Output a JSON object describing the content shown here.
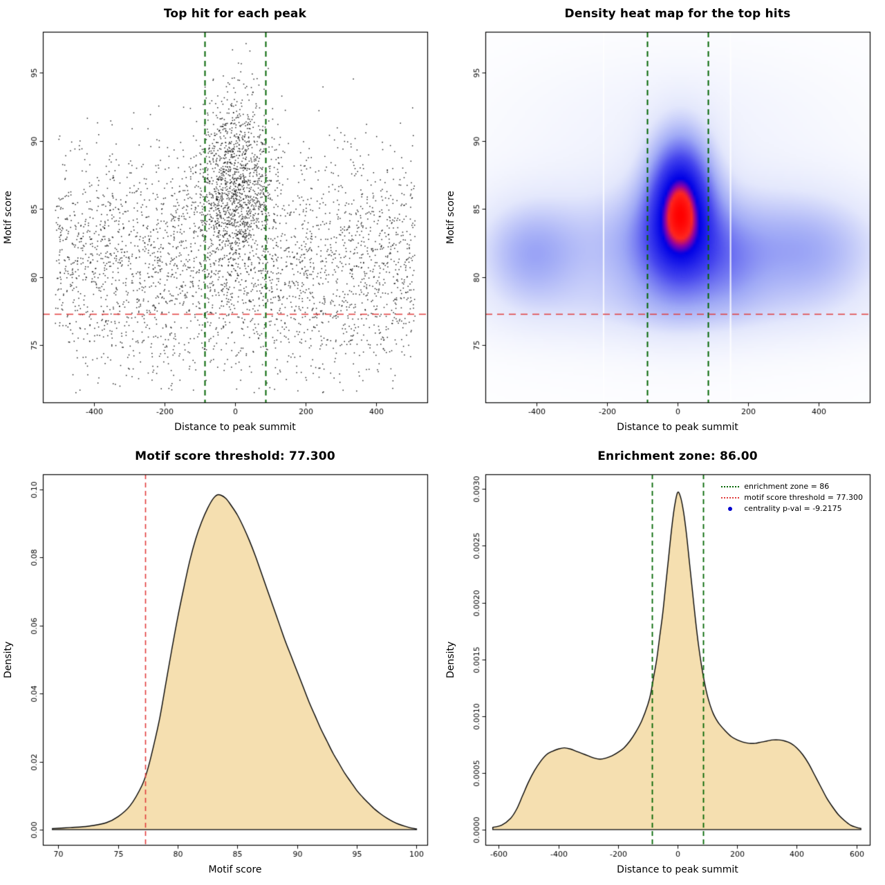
{
  "page": {
    "background": "#ffffff"
  },
  "chart_data": [
    {
      "type": "scatter",
      "title": "Top hit for each peak",
      "xlabel": "Distance to peak summit",
      "ylabel": "Motif score",
      "xlim": [
        -545,
        545
      ],
      "ylim": [
        70.8,
        98.0
      ],
      "xtick_vals": [
        -400,
        -200,
        0,
        200,
        400
      ],
      "xtick_labels": [
        "-400",
        "-200",
        "0",
        "200",
        "400"
      ],
      "ytick_vals": [
        75,
        80,
        85,
        90,
        95
      ],
      "ytick_labels": [
        "75",
        "80",
        "85",
        "90",
        "95"
      ],
      "n_points": 4200,
      "seed": 42,
      "point_color": "rgba(0,0,0,0.88)",
      "mixture": [
        {
          "w": 0.3,
          "kind": "nn",
          "mx": 0,
          "sx": 55,
          "my": 86.8,
          "sy": 3.4
        },
        {
          "w": 0.44,
          "kind": "un",
          "xa": -510,
          "xb": 510,
          "my": 83.0,
          "sy": 3.4
        },
        {
          "w": 0.14,
          "kind": "un",
          "xa": -510,
          "xb": 510,
          "my": 79.3,
          "sy": 2.0
        },
        {
          "w": 0.09,
          "kind": "un",
          "xa": -500,
          "xb": 500,
          "my": 76.3,
          "sy": 1.5
        },
        {
          "w": 0.03,
          "kind": "uu",
          "xa": -450,
          "xb": 450,
          "ya": 71.5,
          "yb": 75.5
        }
      ],
      "vlines": [
        {
          "x": -86,
          "color": "#006400",
          "dash": [
            8,
            6
          ],
          "width": 2
        },
        {
          "x": 86,
          "color": "#006400",
          "dash": [
            8,
            6
          ],
          "width": 2
        }
      ],
      "hlines": [
        {
          "y": 77.3,
          "color": "#e03a3a",
          "dash": [
            10,
            7
          ],
          "width": 1.5
        }
      ],
      "enrichment_zone": 86,
      "motif_score_threshold": 77.3
    },
    {
      "type": "heatmap",
      "title": "Density heat map for the top hits",
      "xlabel": "Distance to peak summit",
      "ylabel": "Motif score",
      "xlim": [
        -545,
        545
      ],
      "ylim": [
        70.8,
        98.0
      ],
      "xtick_vals": [
        -400,
        -200,
        0,
        200,
        400
      ],
      "xtick_labels": [
        "-400",
        "-200",
        "0",
        "200",
        "400"
      ],
      "ytick_vals": [
        75,
        80,
        85,
        90,
        95
      ],
      "ytick_labels": [
        "75",
        "80",
        "85",
        "90",
        "95"
      ],
      "components": [
        {
          "w": 1.0,
          "mx": 8,
          "sx": 60,
          "my": 86.0,
          "sy": 3.1
        },
        {
          "w": 0.45,
          "mx": 0,
          "sx": 90,
          "my": 82.5,
          "sy": 3.2
        },
        {
          "w": 0.34,
          "mx": 0,
          "sx": 330,
          "my": 82.2,
          "sy": 3.1
        },
        {
          "w": 0.3,
          "mx": -420,
          "sx": 90,
          "my": 81.6,
          "sy": 2.5
        },
        {
          "w": 0.26,
          "mx": 380,
          "sx": 130,
          "my": 81.8,
          "sy": 2.7
        },
        {
          "w": 0.16,
          "mx": 150,
          "sx": 70,
          "my": 80.8,
          "sy": 2.4
        },
        {
          "w": 0.12,
          "mx": 0,
          "sx": 360,
          "my": 77.6,
          "sy": 1.7
        },
        {
          "w": 0.05,
          "mx": 0,
          "sx": 300,
          "my": 92.0,
          "sy": 3.0
        },
        {
          "w": 0.06,
          "mx": 0,
          "sx": 420,
          "my": 84.0,
          "sy": 7.0
        }
      ],
      "colormap": [
        [
          0.0,
          "#ffffff"
        ],
        [
          0.18,
          "#e4e8fc"
        ],
        [
          0.38,
          "#a0aaf6"
        ],
        [
          0.6,
          "#4646ee"
        ],
        [
          0.82,
          "#0000e6"
        ],
        [
          0.88,
          "#8c00aa"
        ],
        [
          0.93,
          "#ff2820"
        ],
        [
          1.0,
          "#ff0000"
        ]
      ],
      "gap_lines": [
        -210,
        150
      ],
      "vlines": [
        {
          "x": -86,
          "color": "#006400",
          "dash": [
            8,
            6
          ],
          "width": 2
        },
        {
          "x": 86,
          "color": "#006400",
          "dash": [
            8,
            6
          ],
          "width": 2
        }
      ],
      "hlines": [
        {
          "y": 77.3,
          "color": "#e03a3a",
          "dash": [
            10,
            7
          ],
          "width": 1.5
        }
      ]
    },
    {
      "type": "area",
      "title": "Motif score threshold: 77.300",
      "xlabel": "Motif score",
      "ylabel": "Density",
      "xlim": [
        68.7,
        100.9
      ],
      "ylim": [
        -0.0045,
        0.1045
      ],
      "xtick_vals": [
        70,
        75,
        80,
        85,
        90,
        95,
        100
      ],
      "xtick_labels": [
        "70",
        "75",
        "80",
        "85",
        "90",
        "95",
        "100"
      ],
      "ytick_vals": [
        0.0,
        0.02,
        0.04,
        0.06,
        0.08,
        0.1
      ],
      "ytick_labels": [
        "0.00",
        "0.02",
        "0.04",
        "0.06",
        "0.08",
        "0.10"
      ],
      "fill": "#f5dfb0",
      "line_color": "#000000",
      "curve": [
        [
          69.5,
          0.0003
        ],
        [
          71,
          0.0006
        ],
        [
          72.5,
          0.001
        ],
        [
          74,
          0.002
        ],
        [
          75,
          0.0038
        ],
        [
          76,
          0.007
        ],
        [
          77,
          0.013
        ],
        [
          77.5,
          0.018
        ],
        [
          78,
          0.025
        ],
        [
          78.5,
          0.033
        ],
        [
          79,
          0.043
        ],
        [
          79.5,
          0.053
        ],
        [
          80,
          0.0625
        ],
        [
          80.5,
          0.071
        ],
        [
          81,
          0.079
        ],
        [
          81.5,
          0.0855
        ],
        [
          82,
          0.0905
        ],
        [
          82.5,
          0.0945
        ],
        [
          83,
          0.0975
        ],
        [
          83.4,
          0.0985
        ],
        [
          84,
          0.0975
        ],
        [
          84.5,
          0.0952
        ],
        [
          85,
          0.0925
        ],
        [
          85.5,
          0.089
        ],
        [
          86,
          0.085
        ],
        [
          86.5,
          0.0805
        ],
        [
          87,
          0.0755
        ],
        [
          87.5,
          0.0705
        ],
        [
          88,
          0.0655
        ],
        [
          88.5,
          0.0605
        ],
        [
          89,
          0.0555
        ],
        [
          89.5,
          0.051
        ],
        [
          90,
          0.0465
        ],
        [
          90.5,
          0.042
        ],
        [
          91,
          0.0375
        ],
        [
          91.5,
          0.0335
        ],
        [
          92,
          0.0295
        ],
        [
          92.5,
          0.026
        ],
        [
          93,
          0.0225
        ],
        [
          93.5,
          0.0195
        ],
        [
          94,
          0.0165
        ],
        [
          94.5,
          0.014
        ],
        [
          95,
          0.0115
        ],
        [
          95.5,
          0.0095
        ],
        [
          96,
          0.0077
        ],
        [
          96.5,
          0.006
        ],
        [
          97,
          0.0046
        ],
        [
          97.5,
          0.0034
        ],
        [
          98,
          0.0024
        ],
        [
          98.5,
          0.0016
        ],
        [
          99,
          0.001
        ],
        [
          99.5,
          0.0005
        ],
        [
          100,
          0.0002
        ]
      ],
      "vlines": [
        {
          "x": 77.3,
          "color": "#e03a3a",
          "dash": [
            7,
            5
          ],
          "width": 1.6
        }
      ],
      "threshold": 77.3
    },
    {
      "type": "area",
      "title": "Enrichment zone: 86.00",
      "xlabel": "Distance to peak summit",
      "ylabel": "Density",
      "xlim": [
        -645,
        645
      ],
      "ylim": [
        -0.000135,
        0.00313
      ],
      "xtick_vals": [
        -600,
        -400,
        -200,
        0,
        200,
        400,
        600
      ],
      "xtick_labels": [
        "-600",
        "-400",
        "-200",
        "0",
        "200",
        "400",
        "600"
      ],
      "ytick_vals": [
        0.0,
        0.0005,
        0.001,
        0.0015,
        0.002,
        0.0025,
        0.003
      ],
      "ytick_labels": [
        "0.0000",
        "0.0005",
        "0.0010",
        "0.0015",
        "0.0020",
        "0.0025",
        "0.0030"
      ],
      "fill": "#f5dfb0",
      "line_color": "#000000",
      "curve": [
        [
          -620,
          2e-05
        ],
        [
          -590,
          4e-05
        ],
        [
          -560,
          0.0001
        ],
        [
          -540,
          0.00018
        ],
        [
          -520,
          0.0003
        ],
        [
          -500,
          0.00042
        ],
        [
          -480,
          0.00052
        ],
        [
          -460,
          0.0006
        ],
        [
          -440,
          0.00066
        ],
        [
          -420,
          0.00069
        ],
        [
          -400,
          0.00071
        ],
        [
          -380,
          0.00072
        ],
        [
          -360,
          0.00071
        ],
        [
          -340,
          0.00069
        ],
        [
          -320,
          0.00067
        ],
        [
          -300,
          0.00065
        ],
        [
          -280,
          0.00063
        ],
        [
          -260,
          0.00062
        ],
        [
          -240,
          0.00063
        ],
        [
          -220,
          0.00065
        ],
        [
          -200,
          0.00068
        ],
        [
          -180,
          0.00072
        ],
        [
          -160,
          0.00078
        ],
        [
          -140,
          0.00086
        ],
        [
          -120,
          0.00096
        ],
        [
          -100,
          0.0011
        ],
        [
          -90,
          0.0012
        ],
        [
          -80,
          0.00135
        ],
        [
          -70,
          0.0015
        ],
        [
          -60,
          0.0017
        ],
        [
          -50,
          0.0019
        ],
        [
          -40,
          0.00215
        ],
        [
          -30,
          0.0024
        ],
        [
          -20,
          0.00265
        ],
        [
          -10,
          0.00285
        ],
        [
          0,
          0.00297
        ],
        [
          10,
          0.00293
        ],
        [
          20,
          0.0028
        ],
        [
          30,
          0.0026
        ],
        [
          40,
          0.00235
        ],
        [
          50,
          0.0021
        ],
        [
          60,
          0.00185
        ],
        [
          70,
          0.00163
        ],
        [
          80,
          0.00145
        ],
        [
          90,
          0.0013
        ],
        [
          100,
          0.00118
        ],
        [
          110,
          0.00109
        ],
        [
          120,
          0.00102
        ],
        [
          130,
          0.00097
        ],
        [
          140,
          0.00093
        ],
        [
          160,
          0.00087
        ],
        [
          180,
          0.00082
        ],
        [
          200,
          0.00079
        ],
        [
          220,
          0.00077
        ],
        [
          240,
          0.00076
        ],
        [
          260,
          0.00076
        ],
        [
          280,
          0.00077
        ],
        [
          300,
          0.00078
        ],
        [
          320,
          0.00079
        ],
        [
          340,
          0.00079
        ],
        [
          360,
          0.00078
        ],
        [
          380,
          0.00076
        ],
        [
          400,
          0.00072
        ],
        [
          420,
          0.00066
        ],
        [
          440,
          0.00058
        ],
        [
          460,
          0.00048
        ],
        [
          480,
          0.00038
        ],
        [
          500,
          0.00028
        ],
        [
          520,
          0.0002
        ],
        [
          540,
          0.00013
        ],
        [
          560,
          8e-05
        ],
        [
          580,
          4e-05
        ],
        [
          600,
          2e-05
        ],
        [
          615,
          1e-05
        ]
      ],
      "vlines": [
        {
          "x": -86,
          "color": "#006400",
          "dash": [
            7,
            5
          ],
          "width": 1.8
        },
        {
          "x": 86,
          "color": "#006400",
          "dash": [
            7,
            5
          ],
          "width": 1.8
        }
      ],
      "legend": [
        {
          "label": "enrichment zone = 86",
          "color": "#006400",
          "marker": "dotted-line"
        },
        {
          "label": "motif score threshold = 77.300",
          "color": "#e03a3a",
          "marker": "dotted-line"
        },
        {
          "label": "centrality p-val = -9.2175",
          "color": "#0000cd",
          "marker": "dot"
        }
      ]
    }
  ]
}
